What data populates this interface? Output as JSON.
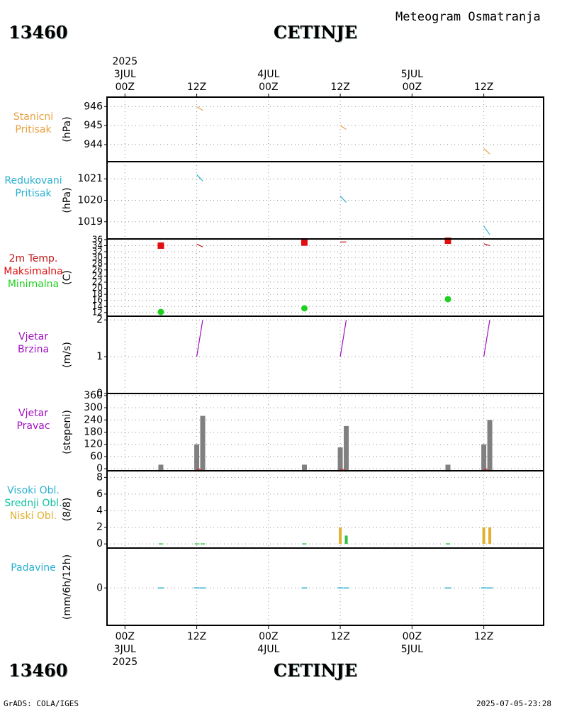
{
  "header": {
    "station_id": "13460",
    "station_name": "CETINJE",
    "meteogram_title": "Meteogram  Osmatranja"
  },
  "footer": {
    "station_id": "13460",
    "station_name": "CETINJE",
    "credit": "GrADS: COLA/IGES",
    "timestamp": "2025-07-05-23:28"
  },
  "time_axis": {
    "top_year": "2025",
    "bottom_year": "2025",
    "ticks": [
      {
        "t": 0,
        "hour": "00Z",
        "date": "3JUL"
      },
      {
        "t": 12,
        "hour": "12Z",
        "date": ""
      },
      {
        "t": 24,
        "hour": "00Z",
        "date": "4JUL"
      },
      {
        "t": 36,
        "hour": "12Z",
        "date": ""
      },
      {
        "t": 48,
        "hour": "00Z",
        "date": "5JUL"
      },
      {
        "t": 60,
        "hour": "12Z",
        "date": ""
      }
    ],
    "range_hours": [
      -3,
      70
    ]
  },
  "colors": {
    "orange": "#e8a040",
    "cyan": "#2ab0d0",
    "red": "#e01010",
    "dark_red": "#c01818",
    "green": "#20d020",
    "purple": "#a010c0",
    "gray": "#808080",
    "teal": "#10c0a0",
    "gold": "#e0b030",
    "lime": "#30c040"
  },
  "panels": {
    "station_pressure": {
      "label_lines": [
        "Stanicni",
        "Pritisak"
      ],
      "unit": "(hPa)"
    },
    "reduced_pressure": {
      "label_lines": [
        "Redukovani",
        "Pritisak"
      ],
      "unit": "(hPa)"
    },
    "temperature": {
      "label_lines": [
        "2m Temp.",
        "Maksimalna",
        "Minimalna"
      ],
      "unit": "(C)"
    },
    "wind_speed": {
      "label_lines": [
        "Vjetar",
        "Brzina"
      ],
      "unit": "(m/s)"
    },
    "wind_direction": {
      "label_lines": [
        "Vjetar",
        "Pravac"
      ],
      "unit": "(stepeni)"
    },
    "clouds": {
      "label_lines": [
        "Visoki Obl.",
        "Srednji Obl.",
        "Niski Obl."
      ],
      "unit": "(8/8)"
    },
    "precipitation": {
      "label_lines": [
        "Padavine"
      ],
      "unit": "(mm/6h/12h)"
    }
  },
  "chart_data": [
    {
      "type": "line",
      "title": "Stanicni Pritisak",
      "ylabel": "(hPa)",
      "ylim": [
        943.1,
        946.5
      ],
      "yticks": [
        944,
        945,
        946
      ],
      "series": [
        {
          "name": "station_pressure",
          "x": [
            12,
            13
          ],
          "values": [
            946.0,
            945.8
          ]
        },
        {
          "name": "station_pressure",
          "x": [
            36,
            37
          ],
          "values": [
            945.0,
            944.8
          ]
        },
        {
          "name": "station_pressure",
          "x": [
            60,
            61
          ],
          "values": [
            943.8,
            943.5
          ]
        }
      ]
    },
    {
      "type": "line",
      "title": "Redukovani Pritisak",
      "ylabel": "(hPa)",
      "ylim": [
        1018.2,
        1021.8
      ],
      "yticks": [
        1019,
        1020,
        1021
      ],
      "series": [
        {
          "name": "reduced_pressure",
          "x": [
            12,
            13
          ],
          "values": [
            1021.2,
            1020.9
          ]
        },
        {
          "name": "reduced_pressure",
          "x": [
            36,
            37
          ],
          "values": [
            1020.2,
            1019.9
          ]
        },
        {
          "name": "reduced_pressure",
          "x": [
            60,
            61
          ],
          "values": [
            1018.8,
            1018.4
          ]
        }
      ]
    },
    {
      "type": "scatter",
      "title": "2m Temp. Maksimalna Minimalna",
      "ylabel": "(C)",
      "ylim": [
        10.8,
        36.2
      ],
      "yticks": [
        12,
        14,
        16,
        18,
        20,
        22,
        24,
        26,
        28,
        30,
        32,
        34,
        36
      ],
      "series": [
        {
          "name": "temp_2m",
          "x": [
            12,
            13
          ],
          "values": [
            34.5,
            33.6
          ]
        },
        {
          "name": "temp_2m",
          "x": [
            36,
            37
          ],
          "values": [
            35.2,
            35.2
          ]
        },
        {
          "name": "temp_2m",
          "x": [
            60,
            61
          ],
          "values": [
            34.6,
            34.0
          ]
        },
        {
          "name": "Maksimalna",
          "x": [
            6,
            30,
            54
          ],
          "values": [
            34.0,
            35.0,
            35.6
          ]
        },
        {
          "name": "Minimalna",
          "x": [
            6,
            30,
            54
          ],
          "values": [
            12.2,
            13.4,
            16.4
          ]
        }
      ]
    },
    {
      "type": "line",
      "title": "Vjetar Brzina",
      "ylabel": "(m/s)",
      "ylim": [
        0,
        2.1
      ],
      "yticks": [
        0,
        1,
        2
      ],
      "series": [
        {
          "name": "wind_speed",
          "x": [
            12,
            13
          ],
          "values": [
            1,
            2
          ]
        },
        {
          "name": "wind_speed",
          "x": [
            36,
            37
          ],
          "values": [
            1,
            2
          ]
        },
        {
          "name": "wind_speed",
          "x": [
            60,
            61
          ],
          "values": [
            1,
            2
          ]
        }
      ]
    },
    {
      "type": "bar",
      "title": "Vjetar Pravac",
      "ylabel": "(stepeni)",
      "ylim": [
        -10,
        370
      ],
      "yticks": [
        0,
        60,
        120,
        180,
        240,
        300,
        360
      ],
      "series": [
        {
          "name": "wind_direction",
          "x": [
            6,
            12,
            13,
            30,
            36,
            37,
            54,
            60,
            61
          ],
          "values": [
            20,
            120,
            260,
            20,
            105,
            210,
            20,
            120,
            240
          ]
        }
      ]
    },
    {
      "type": "bar",
      "title": "Visoki Obl. Srednji Obl. Niski Obl.",
      "ylabel": "(8/8)",
      "ylim": [
        -0.5,
        8.8
      ],
      "yticks": [
        0,
        2,
        4,
        6,
        8
      ],
      "series": [
        {
          "name": "Niski Obl.",
          "x": [
            36,
            60,
            61
          ],
          "values": [
            2,
            2,
            2
          ]
        },
        {
          "name": "Srednji Obl.",
          "x": [
            37
          ],
          "values": [
            1
          ]
        }
      ]
    },
    {
      "type": "line",
      "title": "Padavine",
      "ylabel": "(mm/6h/12h)",
      "ylim": [
        -4.5,
        4.8
      ],
      "yticks": [
        0
      ],
      "series": [
        {
          "name": "precipitation",
          "x": [
            6,
            12,
            13,
            30,
            36,
            37,
            54,
            60,
            61
          ],
          "values": [
            0,
            0,
            0,
            0,
            0,
            0,
            0,
            0,
            0
          ]
        }
      ]
    }
  ]
}
